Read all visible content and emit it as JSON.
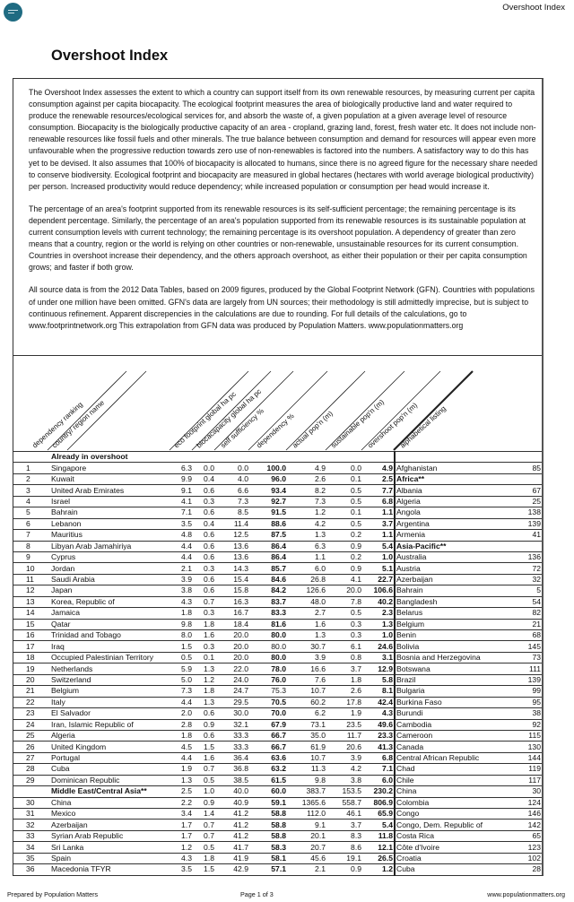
{
  "header": {
    "running_title": "Overshoot Index",
    "logo_icon": "population-matters-logo"
  },
  "title": "Overshoot Index",
  "intro": [
    "The Overshoot Index assesses the extent to which a country can support itself from its own renewable resources, by measuring current per capita consumption against per capita biocapacity. The ecological footprint measures the area of biologically productive land and water required to produce the renewable resources/ecological services for, and absorb the waste of, a given population at a given average level of resource consumption. Biocapacity is the biologically productive capacity of an area - cropland, grazing land, forest, fresh water etc. It does not include non-renewable resources like fossil fuels and other minerals.  The true balance between consumption and demand for resources will appear even more unfavourable when the progressive reduction towards zero use of non-renewables is factored into the numbers.  A satisfactory way to do this has yet to be devised.  It also assumes that 100% of biocapacity is allocated to humans, since there is no agreed figure for the necessary share needed to conserve biodiversity. Ecological footprint and biocapacity are measured in global hectares (hectares with world average biological productivity) per person. Increased productivity would reduce dependency; while increased population or consumption per head would increase it.",
    "The percentage of an area's footprint supported from its renewable resources is its self-sufficient percentage; the remaining percentage is its dependent percentage.    Similarly, the percentage of an area's population supported from its renewable resources is its sustainable population at current consumption levels with current technology; the remaining percentage is its overshoot population. A dependency of greater than zero means that a country, region or the world is relying on other countries or non-renewable, unsustainable resources for its current consumption. Countries in overshoot increase their dependency, and the others approach overshoot, as either their population or their per capita consumption grows; and faster if both grow.",
    "All source data is from the 2012 Data Tables, based on 2009 figures, produced by the Global Footprint Network (GFN). Countries with populations of under one million have been omitted. GFN's data are largely from UN sources; their methodology is still admittedly imprecise, but is subject to continuous refinement. Apparent discrepencies in the calculations are due to rounding.  For full details of the calculations, go to www.footprintnetwork.org This extrapolation from GFN data was produced by Population Matters. www.populationmatters.org"
  ],
  "table": {
    "columns": [
      "dependency ranking",
      "country/ region name",
      "eco footprint global ha pc",
      "biocacapacity global ha pc",
      "self sufficiency %",
      "dependency %",
      "actual pop'n (m)",
      "sustainable pop'n (m)",
      "overshoot pop'n (m)",
      "alphabetical listing"
    ],
    "section_label": "Already in overshoot",
    "rows": [
      {
        "rank": "1",
        "name": "Singapore",
        "values": [
          "6.3",
          "0.0",
          "0.0",
          "100.0",
          "4.9",
          "0.0",
          "4.9"
        ],
        "alpha": "Afghanistan",
        "alpha_rank": "85"
      },
      {
        "rank": "2",
        "name": "Kuwait",
        "values": [
          "9.9",
          "0.4",
          "4.0",
          "96.0",
          "2.6",
          "0.1",
          "2.5"
        ],
        "alpha": "Africa**",
        "alpha_rank": "",
        "alpha_bold": true
      },
      {
        "rank": "3",
        "name": "United Arab Emirates",
        "values": [
          "9.1",
          "0.6",
          "6.6",
          "93.4",
          "8.2",
          "0.5",
          "7.7"
        ],
        "alpha": "Albania",
        "alpha_rank": "67"
      },
      {
        "rank": "4",
        "name": "Israel",
        "values": [
          "4.1",
          "0.3",
          "7.3",
          "92.7",
          "7.3",
          "0.5",
          "6.8"
        ],
        "alpha": "Algeria",
        "alpha_rank": "25"
      },
      {
        "rank": "5",
        "name": "Bahrain",
        "values": [
          "7.1",
          "0.6",
          "8.5",
          "91.5",
          "1.2",
          "0.1",
          "1.1"
        ],
        "alpha": "Angola",
        "alpha_rank": "138"
      },
      {
        "rank": "6",
        "name": "Lebanon",
        "values": [
          "3.5",
          "0.4",
          "11.4",
          "88.6",
          "4.2",
          "0.5",
          "3.7"
        ],
        "alpha": "Argentina",
        "alpha_rank": "139"
      },
      {
        "rank": "7",
        "name": "Mauritius",
        "values": [
          "4.8",
          "0.6",
          "12.5",
          "87.5",
          "1.3",
          "0.2",
          "1.1"
        ],
        "alpha": "Armenia",
        "alpha_rank": "41"
      },
      {
        "rank": "8",
        "name": "Libyan Arab Jamahiriya",
        "values": [
          "4.4",
          "0.6",
          "13.6",
          "86.4",
          "6.3",
          "0.9",
          "5.4"
        ],
        "alpha": "Asia-Pacific**",
        "alpha_rank": "",
        "alpha_bold": true
      },
      {
        "rank": "9",
        "name": "Cyprus",
        "values": [
          "4.4",
          "0.6",
          "13.6",
          "86.4",
          "1.1",
          "0.2",
          "1.0"
        ],
        "alpha": "Australia",
        "alpha_rank": "136"
      },
      {
        "rank": "10",
        "name": "Jordan",
        "values": [
          "2.1",
          "0.3",
          "14.3",
          "85.7",
          "6.0",
          "0.9",
          "5.1"
        ],
        "alpha": "Austria",
        "alpha_rank": "72"
      },
      {
        "rank": "11",
        "name": "Saudi Arabia",
        "values": [
          "3.9",
          "0.6",
          "15.4",
          "84.6",
          "26.8",
          "4.1",
          "22.7"
        ],
        "alpha": "Azerbaijan",
        "alpha_rank": "32"
      },
      {
        "rank": "12",
        "name": "Japan",
        "values": [
          "3.8",
          "0.6",
          "15.8",
          "84.2",
          "126.6",
          "20.0",
          "106.6"
        ],
        "alpha": "Bahrain",
        "alpha_rank": "5"
      },
      {
        "rank": "13",
        "name": "Korea, Republic of",
        "values": [
          "4.3",
          "0.7",
          "16.3",
          "83.7",
          "48.0",
          "7.8",
          "40.2"
        ],
        "alpha": "Bangladesh",
        "alpha_rank": "54"
      },
      {
        "rank": "14",
        "name": "Jamaica",
        "values": [
          "1.8",
          "0.3",
          "16.7",
          "83.3",
          "2.7",
          "0.5",
          "2.3"
        ],
        "alpha": "Belarus",
        "alpha_rank": "82"
      },
      {
        "rank": "15",
        "name": "Qatar",
        "values": [
          "9.8",
          "1.8",
          "18.4",
          "81.6",
          "1.6",
          "0.3",
          "1.3"
        ],
        "alpha": "Belgium",
        "alpha_rank": "21"
      },
      {
        "rank": "16",
        "name": "Trinidad and Tobago",
        "values": [
          "8.0",
          "1.6",
          "20.0",
          "80.0",
          "1.3",
          "0.3",
          "1.0"
        ],
        "alpha": "Benin",
        "alpha_rank": "68"
      },
      {
        "rank": "17",
        "name": "Iraq",
        "values": [
          "1.5",
          "0.3",
          "20.0",
          "80.0",
          "30.7",
          "6.1",
          "24.6"
        ],
        "alpha": "Bolivia",
        "alpha_rank": "145",
        "dep_bold": false
      },
      {
        "rank": "18",
        "name": "Occupied Palestinian Territory",
        "values": [
          "0.5",
          "0.1",
          "20.0",
          "80.0",
          "3.9",
          "0.8",
          "3.1"
        ],
        "alpha": "Bosnia and Herzegovina",
        "alpha_rank": "73"
      },
      {
        "rank": "19",
        "name": "Netherlands",
        "values": [
          "5.9",
          "1.3",
          "22.0",
          "78.0",
          "16.6",
          "3.7",
          "12.9"
        ],
        "alpha": "Botswana",
        "alpha_rank": "111"
      },
      {
        "rank": "20",
        "name": "Switzerland",
        "values": [
          "5.0",
          "1.2",
          "24.0",
          "76.0",
          "7.6",
          "1.8",
          "5.8"
        ],
        "alpha": "Brazil",
        "alpha_rank": "139"
      },
      {
        "rank": "21",
        "name": "Belgium",
        "values": [
          "7.3",
          "1.8",
          "24.7",
          "75.3",
          "10.7",
          "2.6",
          "8.1"
        ],
        "alpha": "Bulgaria",
        "alpha_rank": "99",
        "dep_bold": false
      },
      {
        "rank": "22",
        "name": "Italy",
        "values": [
          "4.4",
          "1.3",
          "29.5",
          "70.5",
          "60.2",
          "17.8",
          "42.4"
        ],
        "alpha": "Burkina Faso",
        "alpha_rank": "95"
      },
      {
        "rank": "23",
        "name": "El Salvador",
        "values": [
          "2.0",
          "0.6",
          "30.0",
          "70.0",
          "6.2",
          "1.9",
          "4.3"
        ],
        "alpha": "Burundi",
        "alpha_rank": "38"
      },
      {
        "rank": "24",
        "name": "Iran, Islamic Republic of",
        "values": [
          "2.8",
          "0.9",
          "32.1",
          "67.9",
          "73.1",
          "23.5",
          "49.6"
        ],
        "alpha": "Cambodia",
        "alpha_rank": "92"
      },
      {
        "rank": "25",
        "name": "Algeria",
        "values": [
          "1.8",
          "0.6",
          "33.3",
          "66.7",
          "35.0",
          "11.7",
          "23.3"
        ],
        "alpha": "Cameroon",
        "alpha_rank": "115"
      },
      {
        "rank": "26",
        "name": "United Kingdom",
        "values": [
          "4.5",
          "1.5",
          "33.3",
          "66.7",
          "61.9",
          "20.6",
          "41.3"
        ],
        "alpha": "Canada",
        "alpha_rank": "130"
      },
      {
        "rank": "27",
        "name": "Portugal",
        "values": [
          "4.4",
          "1.6",
          "36.4",
          "63.6",
          "10.7",
          "3.9",
          "6.8"
        ],
        "alpha": "Central African Republic",
        "alpha_rank": "144"
      },
      {
        "rank": "28",
        "name": "Cuba",
        "values": [
          "1.9",
          "0.7",
          "36.8",
          "63.2",
          "11.3",
          "4.2",
          "7.1"
        ],
        "alpha": "Chad",
        "alpha_rank": "119"
      },
      {
        "rank": "29",
        "name": "Dominican Republic",
        "values": [
          "1.3",
          "0.5",
          "38.5",
          "61.5",
          "9.8",
          "3.8",
          "6.0"
        ],
        "alpha": "Chile",
        "alpha_rank": "117"
      },
      {
        "rank": "",
        "name": "Middle East/Central Asia**",
        "values": [
          "2.5",
          "1.0",
          "40.0",
          "60.0",
          "383.7",
          "153.5",
          "230.2"
        ],
        "alpha": "China",
        "alpha_rank": "30",
        "name_bold": true
      },
      {
        "rank": "30",
        "name": "China",
        "values": [
          "2.2",
          "0.9",
          "40.9",
          "59.1",
          "1365.6",
          "558.7",
          "806.9"
        ],
        "alpha": "Colombia",
        "alpha_rank": "124"
      },
      {
        "rank": "31",
        "name": "Mexico",
        "values": [
          "3.4",
          "1.4",
          "41.2",
          "58.8",
          "112.0",
          "46.1",
          "65.9"
        ],
        "alpha": "Congo",
        "alpha_rank": "146"
      },
      {
        "rank": "32",
        "name": "Azerbaijan",
        "values": [
          "1.7",
          "0.7",
          "41.2",
          "58.8",
          "9.1",
          "3.7",
          "5.4"
        ],
        "alpha": "Congo, Dem. Republic of",
        "alpha_rank": "142"
      },
      {
        "rank": "33",
        "name": "Syrian Arab Republic",
        "values": [
          "1.7",
          "0.7",
          "41.2",
          "58.8",
          "20.1",
          "8.3",
          "11.8"
        ],
        "alpha": "Costa Rica",
        "alpha_rank": "65"
      },
      {
        "rank": "34",
        "name": "Sri Lanka",
        "values": [
          "1.2",
          "0.5",
          "41.7",
          "58.3",
          "20.7",
          "8.6",
          "12.1"
        ],
        "alpha": "Côte d'Ivoire",
        "alpha_rank": "123"
      },
      {
        "rank": "35",
        "name": "Spain",
        "values": [
          "4.3",
          "1.8",
          "41.9",
          "58.1",
          "45.6",
          "19.1",
          "26.5"
        ],
        "alpha": "Croatia",
        "alpha_rank": "102"
      },
      {
        "rank": "36",
        "name": "Macedonia TFYR",
        "values": [
          "3.5",
          "1.5",
          "42.9",
          "57.1",
          "2.1",
          "0.9",
          "1.2"
        ],
        "alpha": "Cuba",
        "alpha_rank": "28"
      }
    ]
  },
  "footer": {
    "left": "Prepared by Population Matters",
    "center": "Page 1 of 3",
    "right": "www.populationmatters.org"
  }
}
